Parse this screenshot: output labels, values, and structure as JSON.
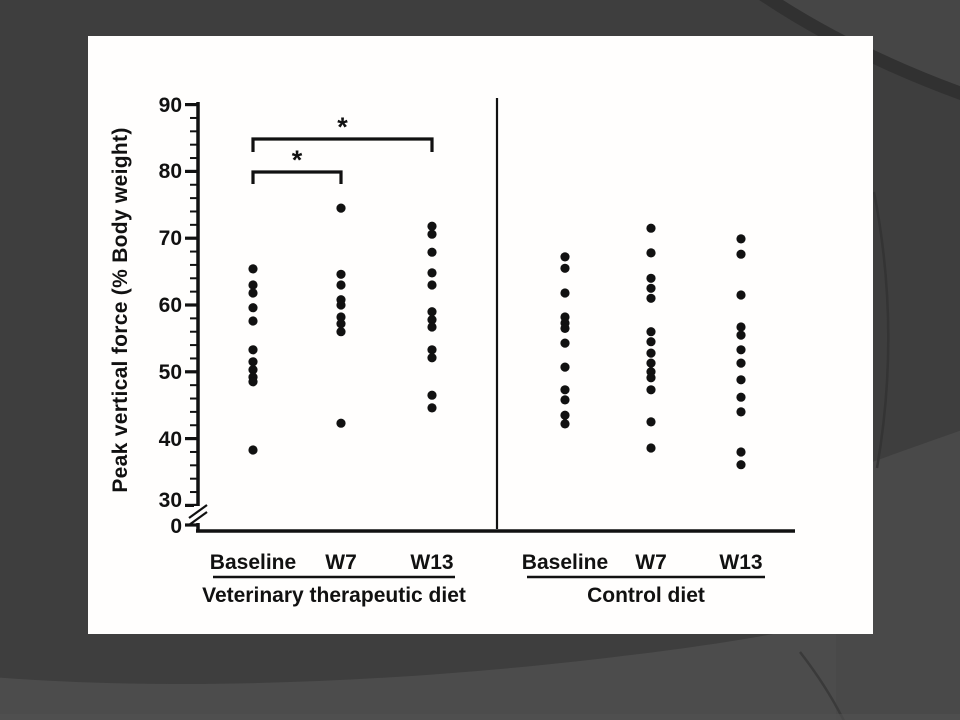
{
  "slide": {
    "background_color": "#3e3e3e",
    "panel_color": "#fffefd",
    "ink_color": "#111111"
  },
  "chart_data": {
    "type": "scatter",
    "title": "",
    "xlabel": "",
    "ylabel": "Peak vertical force (% Body weight)",
    "ylim": [
      0,
      90
    ],
    "axis_break_between": [
      0,
      30
    ],
    "yticks_major": [
      30,
      40,
      50,
      60,
      70,
      80,
      90
    ],
    "ytick_labels": [
      "90",
      "80",
      "70",
      "60",
      "50",
      "40",
      "30",
      "0"
    ],
    "minor_tick_step": 2,
    "grid": "off",
    "legend": "none",
    "panels": [
      {
        "label": "Veterinary therapeutic diet",
        "groups": [
          {
            "label": "Baseline",
            "values": [
              65.4,
              63.0,
              61.8,
              59.6,
              57.6,
              53.3,
              51.5,
              50.3,
              49.2,
              48.5,
              38.3
            ]
          },
          {
            "label": "W7",
            "values": [
              74.5,
              64.6,
              63.0,
              60.8,
              60.0,
              58.2,
              57.2,
              56.0,
              42.3
            ]
          },
          {
            "label": "W13",
            "values": [
              71.8,
              70.6,
              67.9,
              64.8,
              63.0,
              59.0,
              57.8,
              56.7,
              53.3,
              52.1,
              46.5,
              44.6
            ]
          }
        ]
      },
      {
        "label": "Control diet",
        "groups": [
          {
            "label": "Baseline",
            "values": [
              67.2,
              65.5,
              61.8,
              58.2,
              57.3,
              56.5,
              54.3,
              50.7,
              47.3,
              45.8,
              43.5,
              42.2
            ]
          },
          {
            "label": "W7",
            "values": [
              71.5,
              67.8,
              64.0,
              62.5,
              61.0,
              56.0,
              54.5,
              52.8,
              51.3,
              50.0,
              49.1,
              47.3,
              42.5,
              38.6
            ]
          },
          {
            "label": "W13",
            "values": [
              69.9,
              67.6,
              61.5,
              56.7,
              55.5,
              53.3,
              51.3,
              48.8,
              46.2,
              44.0,
              38.0,
              36.1
            ]
          }
        ]
      }
    ],
    "significance": [
      {
        "panel": 0,
        "from": 0,
        "to": 1,
        "marker": "*"
      },
      {
        "panel": 0,
        "from": 0,
        "to": 2,
        "marker": "*"
      }
    ]
  }
}
